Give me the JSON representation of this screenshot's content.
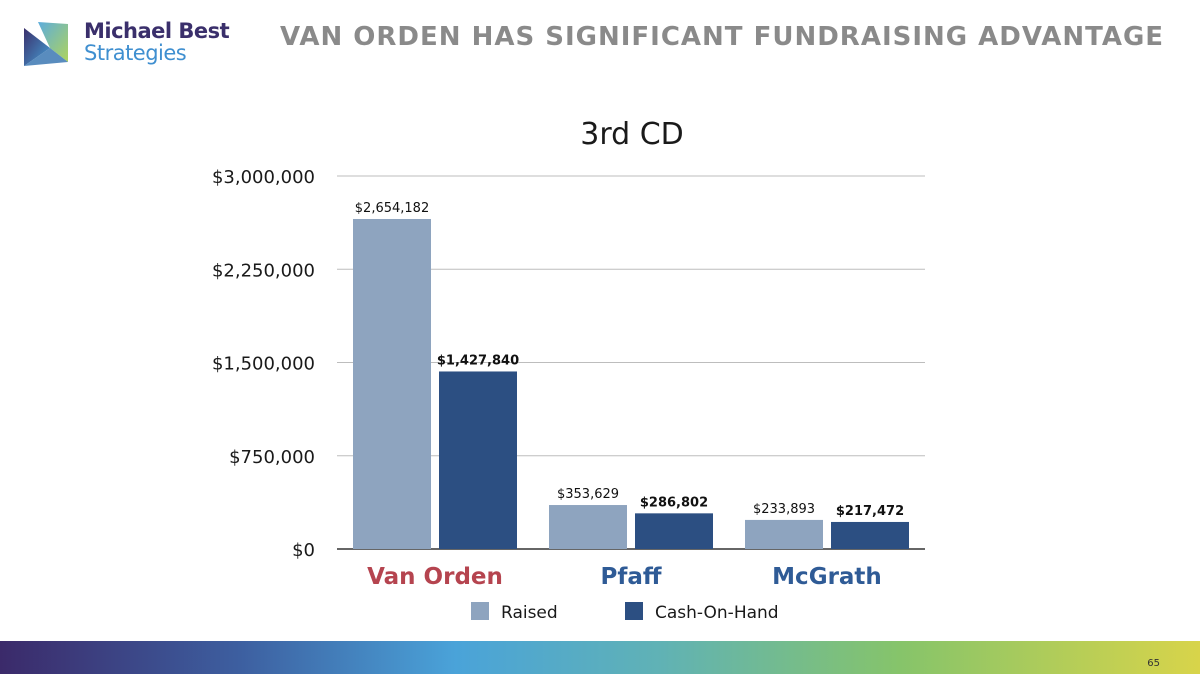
{
  "logo": {
    "line1": "Michael Best",
    "line2": "Strategies"
  },
  "headline": "VAN ORDEN HAS SIGNIFICANT FUNDRAISING ADVANTAGE",
  "page_number": "65",
  "chart_data": {
    "type": "bar",
    "title": "3rd CD",
    "categories": [
      "Van Orden",
      "Pfaff",
      "McGrath"
    ],
    "category_colors": [
      "#b5444f",
      "#2f5b96",
      "#2f5b96"
    ],
    "series": [
      {
        "name": "Raised",
        "color": "#8ea4bf",
        "values": [
          2654182,
          353629,
          233893
        ],
        "labels": [
          "$2,654,182",
          "$353,629",
          "$233,893"
        ],
        "label_bold": false
      },
      {
        "name": "Cash-On-Hand",
        "color": "#2c4f82",
        "values": [
          1427840,
          286802,
          217472
        ],
        "labels": [
          "$1,427,840",
          "$286,802",
          "$217,472"
        ],
        "label_bold": true
      }
    ],
    "y_ticks": [
      0,
      750000,
      1500000,
      2250000,
      3000000
    ],
    "y_tick_labels": [
      "$0",
      "$750,000",
      "$1,500,000",
      "$2,250,000",
      "$3,000,000"
    ],
    "ylim": [
      0,
      3000000
    ],
    "grid": true,
    "legend_position": "bottom"
  }
}
